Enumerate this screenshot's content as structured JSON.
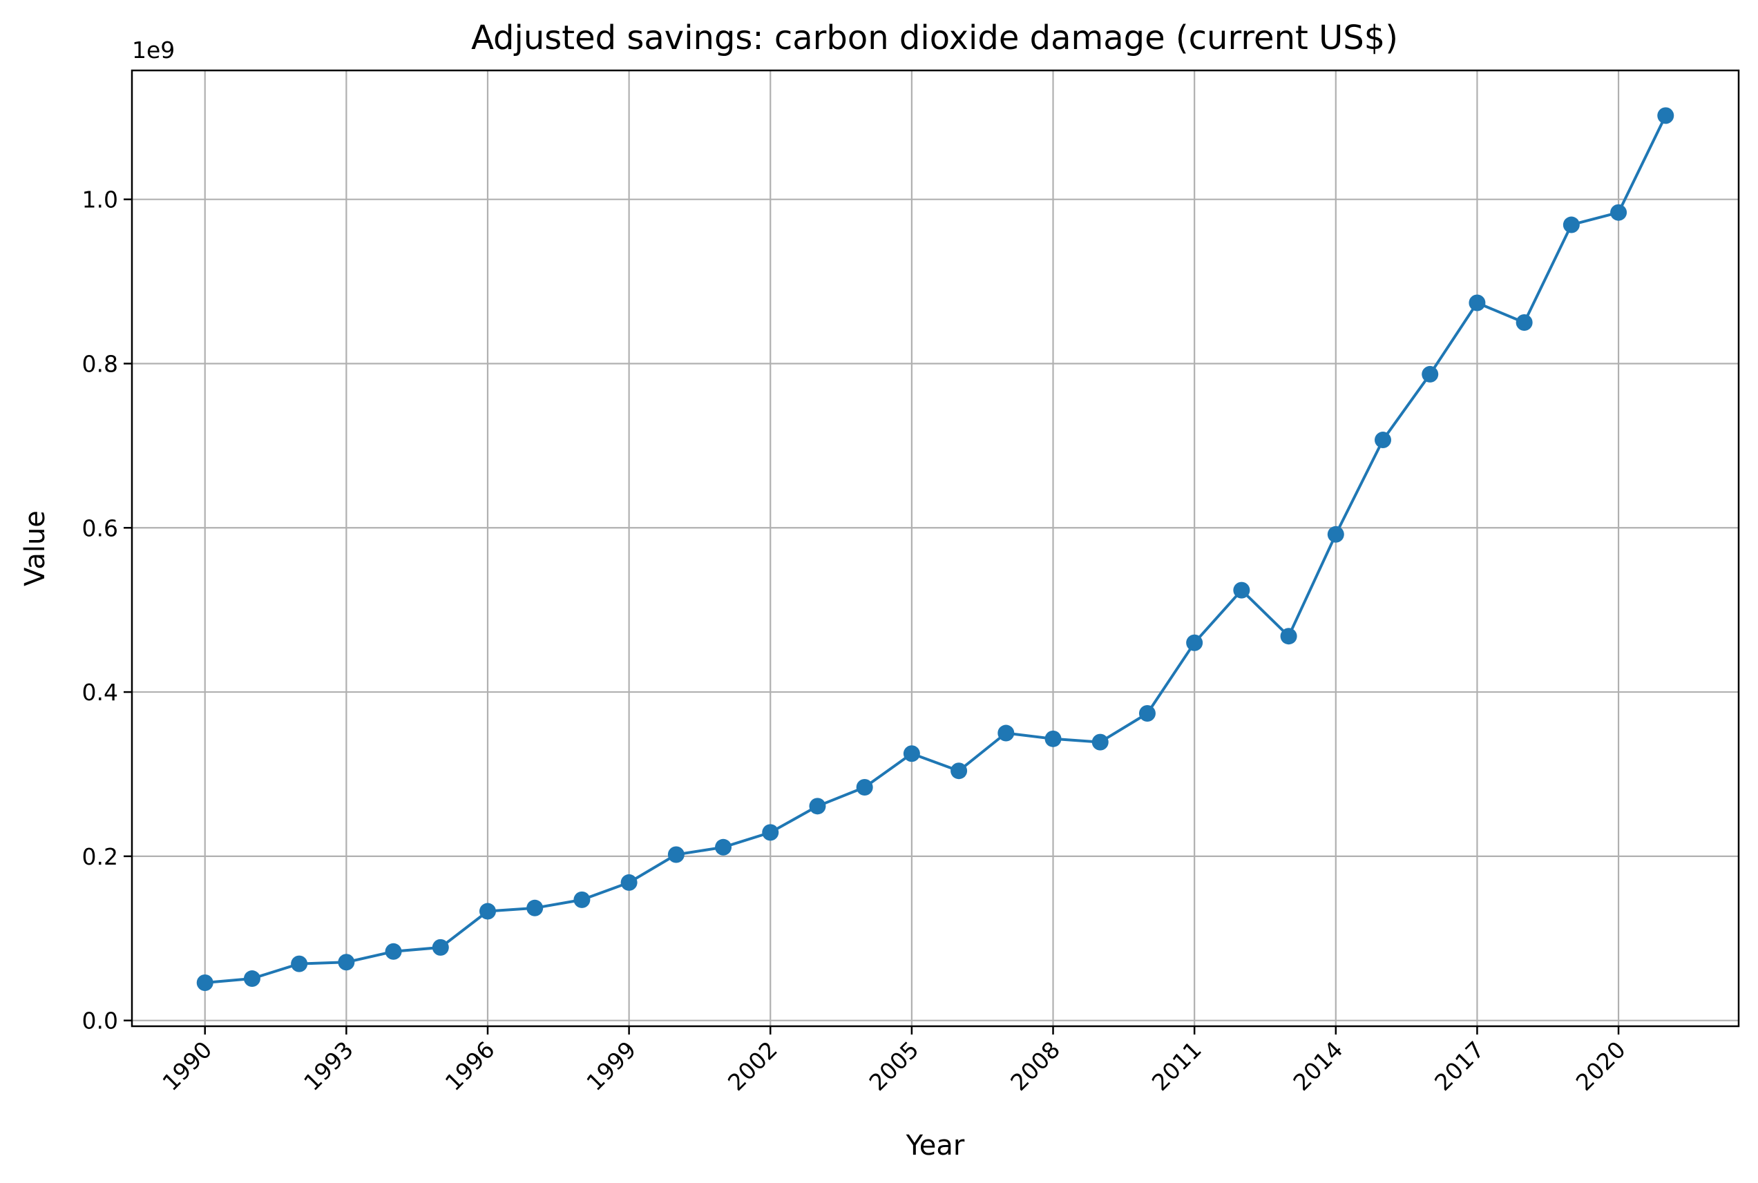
{
  "chart_data": {
    "type": "line",
    "title": "Adjusted savings: carbon dioxide damage (current US$)",
    "xlabel": "Year",
    "ylabel": "Value",
    "y_offset_label": "1e9",
    "xlim": [
      1988.45,
      2022.55
    ],
    "ylim": [
      -0.007,
      1.157
    ],
    "x_ticks": [
      1990,
      1993,
      1996,
      1999,
      2002,
      2005,
      2008,
      2011,
      2014,
      2017,
      2020
    ],
    "x_tick_labels": [
      "1990",
      "1993",
      "1996",
      "1999",
      "2002",
      "2005",
      "2008",
      "2011",
      "2014",
      "2017",
      "2020"
    ],
    "y_ticks": [
      0.0,
      0.2,
      0.4,
      0.6,
      0.8,
      1.0
    ],
    "y_tick_labels": [
      "0.0",
      "0.2",
      "0.4",
      "0.6",
      "0.8",
      "1.0"
    ],
    "grid": true,
    "color": "#1f77b4",
    "series": [
      {
        "marker": "circle",
        "x": [
          1990,
          1991,
          1992,
          1993,
          1994,
          1995,
          1996,
          1997,
          1998,
          1999,
          2000,
          2001,
          2002,
          2003,
          2004,
          2005,
          2006,
          2007,
          2008,
          2009,
          2010,
          2011,
          2012,
          2013,
          2014,
          2015,
          2016,
          2017,
          2018,
          2019,
          2020,
          2021
        ],
        "y": [
          0.046,
          0.051,
          0.069,
          0.071,
          0.084,
          0.089,
          0.133,
          0.137,
          0.147,
          0.168,
          0.202,
          0.211,
          0.229,
          0.261,
          0.284,
          0.325,
          0.304,
          0.35,
          0.343,
          0.339,
          0.374,
          0.46,
          0.524,
          0.468,
          0.592,
          0.707,
          0.787,
          0.874,
          0.85,
          0.969,
          0.984,
          1.102
        ]
      }
    ]
  }
}
